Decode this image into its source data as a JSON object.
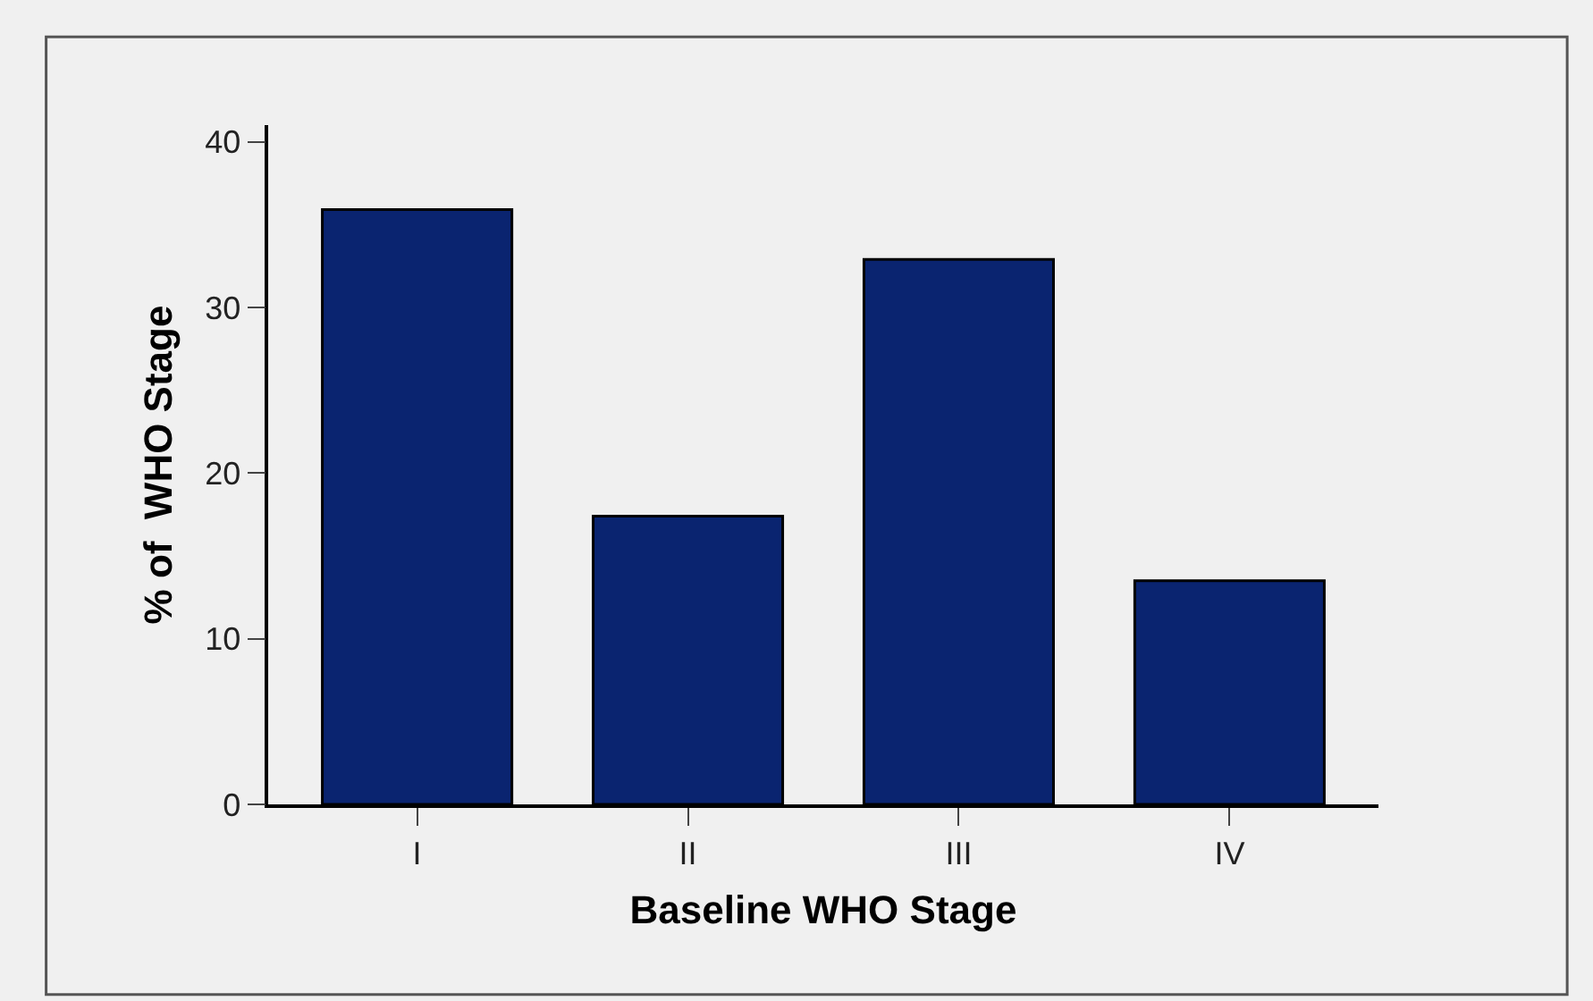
{
  "chart_data": {
    "type": "bar",
    "xlabel": "Baseline WHO Stage",
    "ylabel": "% of  WHO Stage",
    "categories": [
      "I",
      "II",
      "III",
      "IV"
    ],
    "values": [
      35.9,
      17.4,
      32.9,
      13.5
    ],
    "color": "#0a2470",
    "ylim": [
      0,
      41
    ],
    "yticks": [
      0,
      10,
      20,
      30,
      40
    ],
    "grid": false
  }
}
